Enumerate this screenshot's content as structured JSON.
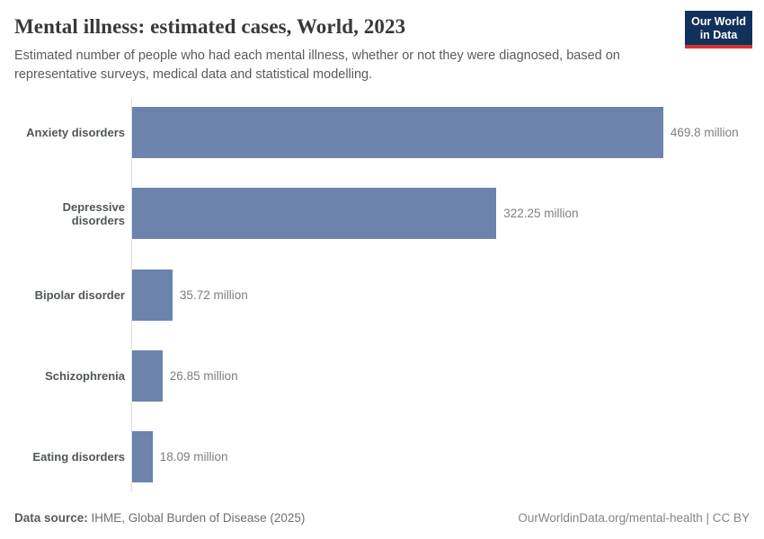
{
  "header": {
    "title": "Mental illness: estimated cases, World, 2023",
    "subtitle": "Estimated number of people who had each mental illness, whether or not they were diagnosed, based on representative surveys, medical data and statistical modelling.",
    "logo": {
      "line1": "Our World",
      "line2": "in Data",
      "bg_color": "#12305c",
      "accent_color": "#d2342f"
    }
  },
  "chart_data": {
    "type": "bar",
    "orientation": "horizontal",
    "title": "Mental illness: estimated cases, World, 2023",
    "categories": [
      "Anxiety disorders",
      "Depressive disorders",
      "Bipolar disorder",
      "Schizophrenia",
      "Eating disorders"
    ],
    "values": [
      469.8,
      322.25,
      35.72,
      26.85,
      18.09
    ],
    "value_labels": [
      "469.8 million",
      "322.25 million",
      "35.72 million",
      "26.85 million",
      "18.09 million"
    ],
    "unit": "million",
    "xlim": [
      0,
      469.8
    ],
    "bar_color": "#6c83ad",
    "grid": false,
    "legend": "none"
  },
  "footer": {
    "datasource_label": "Data source:",
    "datasource_value": " IHME, Global Burden of Disease (2025)",
    "attribution": "OurWorldinData.org/mental-health | CC BY"
  }
}
